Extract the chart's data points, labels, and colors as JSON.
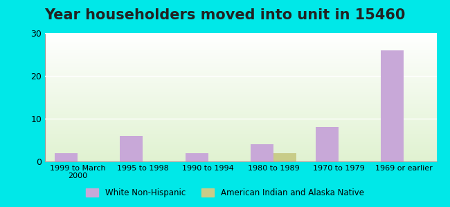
{
  "title": "Year householders moved into unit in 15460",
  "categories": [
    "1999 to March\n2000",
    "1995 to 1998",
    "1990 to 1994",
    "1980 to 1989",
    "1970 to 1979",
    "1969 or earlier"
  ],
  "white_non_hispanic": [
    2,
    6,
    2,
    4,
    8,
    26
  ],
  "american_indian": [
    0,
    0,
    0,
    2,
    0,
    0
  ],
  "white_color": "#c8a8d8",
  "indian_color": "#c8cc88",
  "background_outer": "#00e8e8",
  "ylim": [
    0,
    30
  ],
  "yticks": [
    0,
    10,
    20,
    30
  ],
  "title_fontsize": 15,
  "legend_labels": [
    "White Non-Hispanic",
    "American Indian and Alaska Native"
  ],
  "bar_width": 0.35
}
